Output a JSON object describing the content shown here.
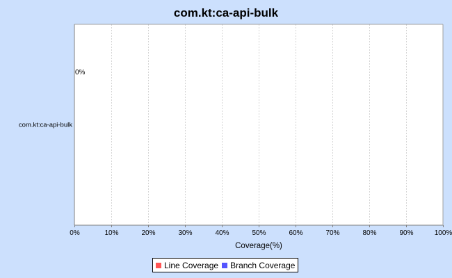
{
  "chart_data": {
    "type": "bar",
    "orientation": "horizontal",
    "title": "com.kt:ca-api-bulk",
    "xlabel": "Coverage(%)",
    "ylabel": "",
    "categories": [
      "com.kt:ca-api-bulk"
    ],
    "xlim": [
      0,
      100
    ],
    "x_ticks": [
      "0%",
      "10%",
      "20%",
      "30%",
      "40%",
      "50%",
      "60%",
      "70%",
      "80%",
      "90%",
      "100%"
    ],
    "series": [
      {
        "name": "Line Coverage",
        "values": [
          0
        ],
        "color": "#ff5555"
      },
      {
        "name": "Branch Coverage",
        "values": [
          0
        ],
        "color": "#5555ff"
      }
    ],
    "data_labels": [
      "0%"
    ],
    "grid": true,
    "legend_position": "bottom"
  },
  "colors": {
    "background": "#cce0fd",
    "plot_background": "#ffffff",
    "gridline": "#d4d4d4"
  }
}
